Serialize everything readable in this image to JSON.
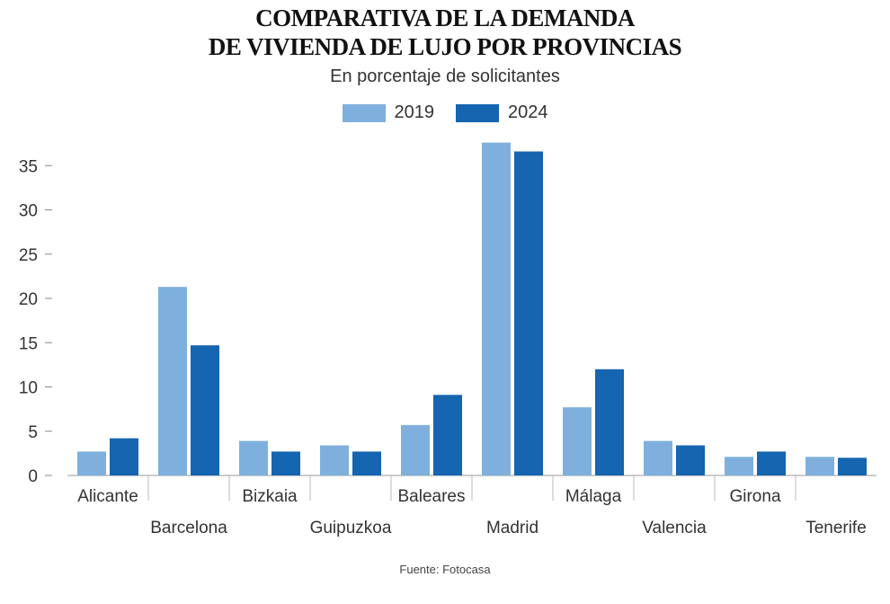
{
  "chart_data": {
    "type": "bar",
    "title": "COMPARATIVA DE LA DEMANDA DE VIVIENDA DE LUJO POR PROVINCIAS",
    "title_lines": [
      "COMPARATIVA DE LA DEMANDA",
      "DE VIVIENDA DE LUJO POR PROVINCIAS"
    ],
    "subtitle": "En porcentaje de solicitantes",
    "xlabel": "",
    "ylabel": "",
    "ylim": [
      0,
      38
    ],
    "yticks": [
      0,
      5,
      10,
      15,
      20,
      25,
      30,
      35
    ],
    "categories": [
      "Alicante",
      "Barcelona",
      "Bizkaia",
      "Guipuzkoa",
      "Baleares",
      "Madrid",
      "Málaga",
      "Valencia",
      "Girona",
      "Tenerife"
    ],
    "series": [
      {
        "name": "2019",
        "color": "#7fb0dd",
        "values": [
          2.7,
          21.3,
          3.9,
          3.4,
          5.7,
          37.6,
          7.7,
          3.9,
          2.1,
          2.1
        ]
      },
      {
        "name": "2024",
        "color": "#1565b0",
        "values": [
          4.2,
          14.7,
          2.7,
          2.7,
          9.1,
          36.6,
          12.0,
          3.4,
          2.7,
          2.0
        ]
      }
    ],
    "legend_position": "top-center",
    "grid": false
  },
  "source": "Fuente: Fotocasa"
}
